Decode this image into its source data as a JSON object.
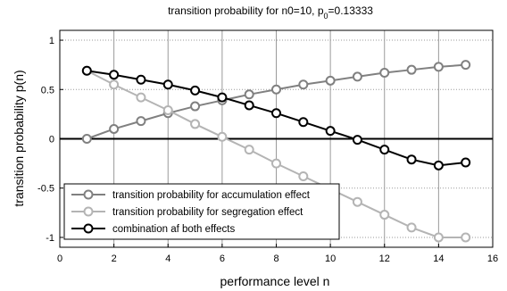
{
  "chart_data": {
    "type": "line",
    "title_parts": {
      "prefix": "transition probability for n0=10, p",
      "subscript": "0",
      "suffix": "=0.13333"
    },
    "xlabel": "performance level n",
    "ylabel": "transition probability p(n)",
    "xlim": [
      0,
      16
    ],
    "ylim": [
      -1.1,
      1.1
    ],
    "xticks": [
      0,
      2,
      4,
      6,
      8,
      10,
      12,
      14,
      16
    ],
    "yticks": [
      -1,
      -0.5,
      0,
      0.5,
      1
    ],
    "ytick_labels": [
      "-1",
      "-0.5",
      "0",
      "0.5",
      "1"
    ],
    "grid": true,
    "legend_position": "bottom-left",
    "reference_line": {
      "y": 0,
      "color": "#000000"
    },
    "x": [
      1,
      2,
      3,
      4,
      5,
      6,
      7,
      8,
      9,
      10,
      11,
      12,
      13,
      14,
      15
    ],
    "series": [
      {
        "name": "transition probability for accumulation effect",
        "color": "#808080",
        "values": [
          0.0,
          0.1,
          0.18,
          0.26,
          0.33,
          0.39,
          0.45,
          0.5,
          0.55,
          0.59,
          0.63,
          0.67,
          0.7,
          0.73,
          0.75
        ]
      },
      {
        "name": "transition probability for segregation effect",
        "color": "#b4b4b4",
        "values": [
          0.69,
          0.55,
          0.42,
          0.29,
          0.15,
          0.02,
          -0.11,
          -0.25,
          -0.38,
          -0.51,
          -0.64,
          -0.77,
          -0.9,
          -1.0,
          -1.0
        ]
      },
      {
        "name": "combination af both effects",
        "color": "#000000",
        "values": [
          0.69,
          0.65,
          0.6,
          0.55,
          0.49,
          0.42,
          0.34,
          0.26,
          0.17,
          0.08,
          -0.01,
          -0.11,
          -0.21,
          -0.27,
          -0.24
        ]
      }
    ]
  }
}
